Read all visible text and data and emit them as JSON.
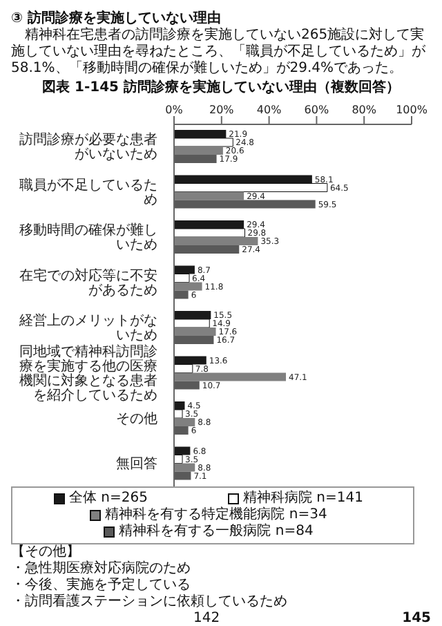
{
  "chart_data": {
    "type": "bar",
    "orientation": "horizontal",
    "title": "図表 1-145 訪問診療を実施していない理由（複数回答）",
    "categories": [
      "訪問診療が必要な患者がいないため",
      "職員が不足しているため",
      "移動時間の確保が難しいため",
      "在宅での対応等に不安があるため",
      "経営上のメリットがないため",
      "同地域で精神科訪問診療を実施する他の医療機関に対象となる患者を紹介しているため",
      "その他",
      "無回答"
    ],
    "series": [
      {
        "name": "全体 n=265",
        "color": "#1a1a1a",
        "values": [
          21.9,
          58.1,
          29.4,
          8.7,
          15.5,
          13.6,
          4.5,
          6.8
        ]
      },
      {
        "name": "精神科病院 n=141",
        "color": "#ffffff",
        "values": [
          24.8,
          64.5,
          29.8,
          6.4,
          14.9,
          7.8,
          3.5,
          3.5
        ]
      },
      {
        "name": "精神科を有する特定機能病院 n=34",
        "color": "#808080",
        "values": [
          20.6,
          29.4,
          35.3,
          11.8,
          17.6,
          47.1,
          8.8,
          8.8
        ]
      },
      {
        "name": "精神科を有する一般病院 n=84",
        "color": "#595959",
        "values": [
          17.9,
          59.5,
          27.4,
          6.0,
          16.7,
          10.7,
          6.0,
          7.1
        ]
      }
    ],
    "xlim": [
      0,
      100
    ],
    "xticks": [
      {
        "value": 0,
        "label": "0%"
      },
      {
        "value": 20,
        "label": "20%"
      },
      {
        "value": 40,
        "label": "40%"
      },
      {
        "value": 60,
        "label": "60%"
      },
      {
        "value": 80,
        "label": "80%"
      },
      {
        "value": 100,
        "label": "100%"
      }
    ],
    "data_labels": true,
    "legend": "bottom",
    "annotations": [
      "③ 訪問診療を実施していない理由",
      "精神科在宅患者の訪問診療を実施していない265施設に対して実施していない理由を尋ねたところ、「職員が不足しているため」が58.1%、「移動時間の確保が難しいため」が29.4%であった。",
      "【その他】",
      "・急性期医療対応病院のため",
      "・今後、実施を予定している",
      "・訪問看護ステーションに依頼しているため",
      "142",
      "145"
    ]
  }
}
